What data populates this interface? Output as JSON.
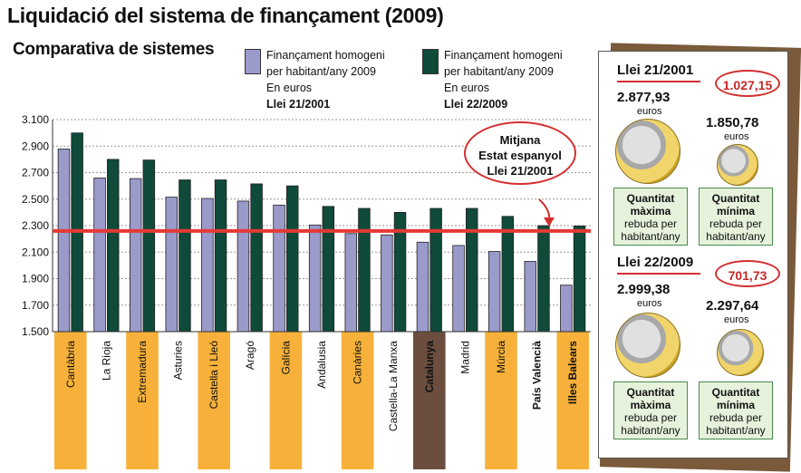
{
  "header": {
    "title": "Liquidació del sistema de finançament (2009)",
    "subtitle": "Comparativa de sistemes"
  },
  "legend": {
    "series1": {
      "line1": "Finançament homogeni",
      "line2": "per habitant/any 2009",
      "line3": "En euros",
      "line4": "Llei 21/2001",
      "color": "#9a9acb"
    },
    "series2": {
      "line1": "Finançament homogeni",
      "line2": "per habitant/any 2009",
      "line3": "En euros",
      "line4": "Llei 22/2009",
      "color": "#0f4a3a"
    }
  },
  "callout": {
    "line1": "Mitjana",
    "line2": "Estat espanyol",
    "line3": "Llei 21/2001"
  },
  "chart_data": {
    "type": "bar",
    "title": "Liquidació del sistema de finançament (2009)",
    "categories": [
      "Cantàbria",
      "La Rioja",
      "Extremadura",
      "Asturies",
      "Castella i Lleó",
      "Aragó",
      "Galícia",
      "Andalusia",
      "Canàries",
      "Castella-La Manxa",
      "Catalunya",
      "Madrid",
      "Múrcia",
      "País Valencià",
      "Illes Balears"
    ],
    "series": [
      {
        "name": "Llei 21/2001",
        "values": [
          2877.93,
          2660,
          2655,
          2515,
          2505,
          2485,
          2455,
          2305,
          2240,
          2230,
          2175,
          2150,
          2105,
          2030,
          1850.78
        ]
      },
      {
        "name": "Llei 22/2009",
        "values": [
          2999.38,
          2800,
          2795,
          2645,
          2645,
          2615,
          2600,
          2445,
          2430,
          2400,
          2430,
          2430,
          2370,
          2300,
          2297.64
        ]
      }
    ],
    "yticks": [
      "3.100",
      "2.900",
      "2.700",
      "2.500",
      "2.300",
      "2.100",
      "1.900",
      "1.700",
      "1.500"
    ],
    "ylim": [
      1500,
      3100
    ],
    "reference_line": 2260,
    "highlight_categories": [
      "Cantàbria",
      "Extremadura",
      "Castella i Lleó",
      "Galícia",
      "Canàries",
      "Múrcia",
      "Illes Balears"
    ],
    "emphasis_category": "Catalunya",
    "bold_categories": [
      "Catalunya",
      "País Valencià",
      "Illes Balears"
    ]
  },
  "panel": {
    "law1": {
      "title": "Llei 21/2001",
      "badge": "1.027,15",
      "max_amount": "2.877,93",
      "max_unit": "euros",
      "min_amount": "1.850,78",
      "min_unit": "euros",
      "max_box": {
        "line1": "Quantitat",
        "line2": "màxima",
        "line3": "rebuda per",
        "line4": "habitant/any"
      },
      "min_box": {
        "line1": "Quantitat",
        "line2": "mínima",
        "line3": "rebuda per",
        "line4": "habitant/any"
      }
    },
    "law2": {
      "title": "Llei 22/2009",
      "badge": "701,73",
      "max_amount": "2.999,38",
      "max_unit": "euros",
      "min_amount": "2.297,64",
      "min_unit": "euros",
      "max_box": {
        "line1": "Quantitat",
        "line2": "màxima",
        "line3": "rebuda per",
        "line4": "habitant/any"
      },
      "min_box": {
        "line1": "Quantitat",
        "line2": "mínima",
        "line3": "rebuda per",
        "line4": "habitant/any"
      }
    }
  },
  "colors": {
    "series1": "#9a9acb",
    "series2": "#0f4a3a",
    "highlight": "#f7b13a",
    "emphasis": "#6b4e3d",
    "reference": "#e53935"
  }
}
